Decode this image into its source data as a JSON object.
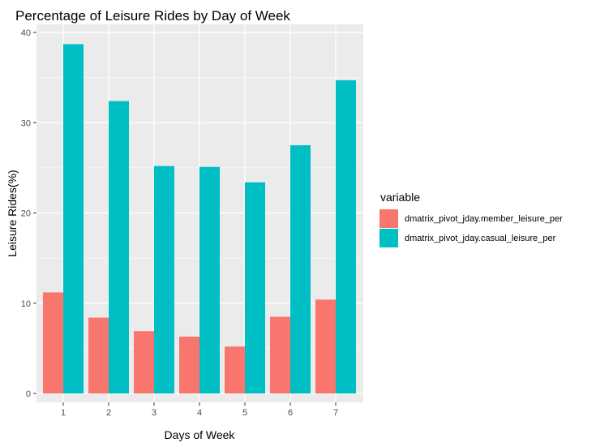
{
  "chart_data": {
    "type": "bar",
    "title": "Percentage of Leisure Rides by Day of Week",
    "xlabel": "Days of Week",
    "ylabel": "Leisure Rides(%)",
    "categories": [
      "1",
      "2",
      "3",
      "4",
      "5",
      "6",
      "7"
    ],
    "ylim": [
      0,
      41
    ],
    "yticks": [
      0,
      10,
      20,
      30,
      40
    ],
    "grid": true,
    "legend_title": "variable",
    "legend_position": "right",
    "series": [
      {
        "name": "dmatrix_pivot_jday.member_leisure_per",
        "color": "#f8766d",
        "values": [
          11.2,
          8.4,
          6.9,
          6.3,
          5.2,
          8.5,
          10.4
        ]
      },
      {
        "name": "dmatrix_pivot_jday.casual_leisure_per",
        "color": "#00bfc4",
        "values": [
          38.7,
          32.4,
          25.2,
          25.1,
          23.4,
          27.5,
          34.7
        ]
      }
    ],
    "panel_bg": "#ebebeb",
    "grid_color": "#ffffff"
  }
}
